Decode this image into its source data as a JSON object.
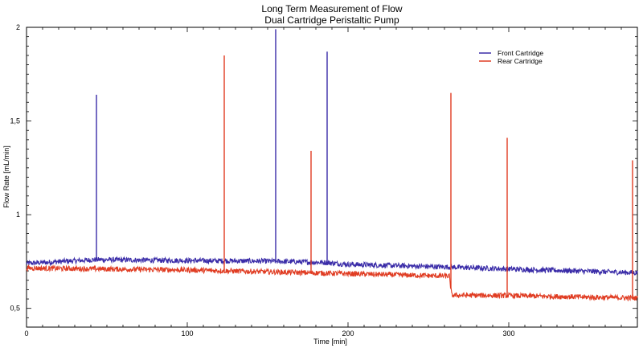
{
  "chart_data": {
    "type": "line",
    "title": "Long Term Measurement of Flow",
    "subtitle": "Dual Cartridge Peristaltic Pump",
    "xlabel": "Time [min]",
    "ylabel": "Flow Rate [mL/min]",
    "xlim": [
      0,
      380
    ],
    "ylim": [
      0.4,
      2.0
    ],
    "x_ticks": [
      0,
      100,
      200,
      300
    ],
    "x_tick_labels": [
      "0",
      "100",
      "200",
      "300"
    ],
    "y_ticks": [
      0.5,
      1.0,
      1.5,
      2.0
    ],
    "y_tick_labels": [
      "0,5",
      "1",
      "1,5",
      "2"
    ],
    "grid": false,
    "legend_position": "top-right",
    "series": [
      {
        "name": "Front Cartridge",
        "color": "#3a2ca8",
        "baseline": [
          [
            0,
            0.74
          ],
          [
            43,
            0.76
          ],
          [
            100,
            0.755
          ],
          [
            150,
            0.752
          ],
          [
            185,
            0.745
          ],
          [
            200,
            0.735
          ],
          [
            265,
            0.72
          ],
          [
            300,
            0.71
          ],
          [
            380,
            0.69
          ]
        ],
        "spikes": [
          [
            43.5,
            1.64
          ],
          [
            155,
            1.99
          ],
          [
            187,
            1.87
          ]
        ]
      },
      {
        "name": "Rear Cartridge",
        "color": "#e03c22",
        "baseline": [
          [
            0,
            0.715
          ],
          [
            100,
            0.705
          ],
          [
            150,
            0.695
          ],
          [
            200,
            0.685
          ],
          [
            263,
            0.672
          ],
          [
            264.5,
            0.57
          ],
          [
            300,
            0.568
          ],
          [
            380,
            0.555
          ]
        ],
        "spikes": [
          [
            123,
            1.85
          ],
          [
            177,
            1.34
          ],
          [
            264,
            1.65
          ],
          [
            299,
            1.41
          ],
          [
            377,
            1.29
          ]
        ]
      }
    ]
  }
}
